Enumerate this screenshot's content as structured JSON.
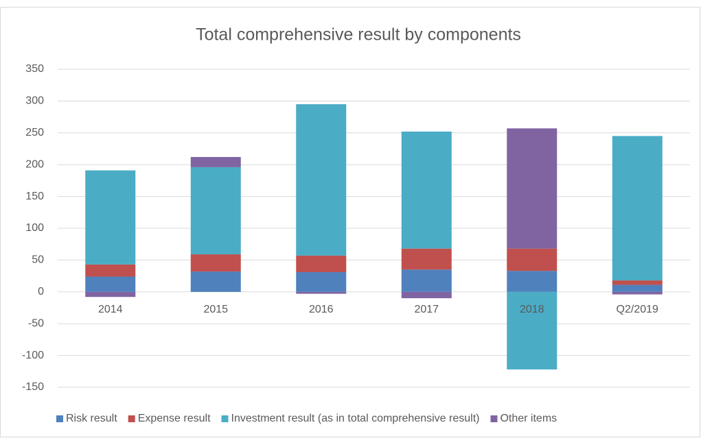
{
  "chart_data": {
    "type": "bar",
    "stacked": true,
    "title": "Total comprehensive result by components",
    "categories": [
      "2014",
      "2015",
      "2016",
      "2017",
      "2018",
      "Q2/2019"
    ],
    "series": [
      {
        "name": "Risk result",
        "color": "#4f81bd",
        "values": [
          24,
          32,
          31,
          35,
          33,
          11
        ]
      },
      {
        "name": "Expense result",
        "color": "#c0504d",
        "values": [
          19,
          27,
          26,
          33,
          35,
          7
        ]
      },
      {
        "name": "Investment result (as in total comprehensive result)",
        "color": "#4bacc6",
        "values": [
          148,
          137,
          238,
          184,
          -122,
          227
        ]
      },
      {
        "name": "Other items",
        "color": "#8064a2",
        "values": [
          -8,
          16,
          -3,
          -10,
          189,
          -4
        ]
      }
    ],
    "ylim": [
      -150,
      350
    ],
    "yticks": [
      -150,
      -100,
      -50,
      0,
      50,
      100,
      150,
      200,
      250,
      300,
      350
    ],
    "grid": true,
    "legend": "bottom"
  }
}
